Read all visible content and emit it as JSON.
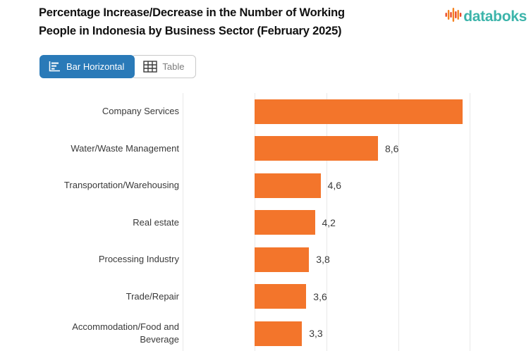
{
  "header": {
    "title_line1": "Percentage Increase/Decrease in the Number of Working",
    "title_line2": "People in Indonesia by Business Sector (February 2025)",
    "logo_text": "databoks"
  },
  "toolbar": {
    "bar_horizontal_label": "Bar Horizontal",
    "table_label": "Table"
  },
  "icons": {
    "logo": "equalizer-bars-icon",
    "bar_horizontal": "horizontal-bar-chart-icon",
    "table": "table-grid-icon"
  },
  "colors": {
    "bar_orange": "#f3752b",
    "button_blue": "#2a7ab8",
    "logo_teal": "#3cb4aa",
    "gridline": "#e9e9e9",
    "logo_icon_red": "#e94b2c",
    "logo_icon_orange": "#f58220"
  },
  "chart_data": {
    "type": "bar",
    "orientation": "horizontal",
    "title": "Percentage Increase/Decrease in the Number of Working People in Indonesia by Business Sector (February 2025)",
    "xlabel": "",
    "ylabel": "",
    "categories": [
      "Company Services",
      "Water/Waste Management",
      "Transportation/Warehousing",
      "Real estate",
      "Processing Industry",
      "Trade/Repair",
      "Accommodation/Food and Beverage"
    ],
    "values": [
      14.5,
      8.6,
      4.6,
      4.2,
      3.8,
      3.6,
      3.3
    ],
    "value_labels": [
      "",
      "8,6",
      "4,6",
      "4,2",
      "3,8",
      "3,6",
      "3,3"
    ],
    "xlim": [
      -5,
      19
    ],
    "gridline_values": [
      -5,
      0,
      5,
      10,
      15
    ],
    "grid": true,
    "legend": false,
    "bar_color": "#f3752b"
  }
}
